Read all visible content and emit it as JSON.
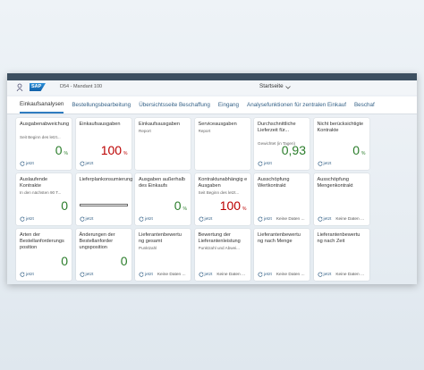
{
  "shell": {
    "system": "D54 - Mandant 100",
    "page_title": "Startseite"
  },
  "tabs": [
    "Einkaufsanalysen",
    "Bestellungsbearbeitung",
    "Übersichtsseite Beschaffung",
    "Eingang",
    "Analysefunktionen für zentralen Einkauf",
    "Beschaf"
  ],
  "tiles": [
    {
      "title": "Ausgabenabweichung",
      "subtitle": "Seit Beginn des letzt...",
      "value": "0",
      "unit": "%",
      "value_color": "#2b7d2b",
      "refresh": "jetzt"
    },
    {
      "title": "Einkaufsausgaben",
      "value": "100",
      "unit": "%",
      "value_color": "#bb0000",
      "refresh": "jetzt"
    },
    {
      "title": "Einkaufsausgaben",
      "subtitle": "Report"
    },
    {
      "title": "Serviceausgaben",
      "subtitle": "Report"
    },
    {
      "title": "Durchschnittliche Lieferzeit für...",
      "subtitle": "Gewichtet (in Tagen)",
      "value": "0,93",
      "value_color": "#2b7d2b",
      "refresh": "jetzt"
    },
    {
      "title": "Nicht berücksichtigte Kontrakte",
      "value": "0",
      "unit": "%",
      "value_color": "#2b7d2b",
      "refresh": "jetzt"
    },
    {
      "title": "Auslaufende Kontrakte",
      "subtitle": "In den nächsten 90 T...",
      "value": "0",
      "value_color": "#2b7d2b",
      "refresh": "jetzt"
    },
    {
      "title": "Lieferplankonsumierung",
      "content": "progress",
      "refresh": "jetzt"
    },
    {
      "title": "Ausgaben außerhalb des Einkaufs",
      "value": "0",
      "unit": "%",
      "value_color": "#2b7d2b",
      "refresh": "jetzt"
    },
    {
      "title": "Kontraktunabhängig e Ausgaben",
      "subtitle": "Seit Beginn des letzt...",
      "value": "100",
      "unit": "%",
      "value_color": "#bb0000",
      "refresh": "jetzt"
    },
    {
      "title": "Ausschöpfung Wertkontrakt",
      "refresh": "jetzt",
      "status": "Keine Daten ..."
    },
    {
      "title": "Ausschöpfung Mengenkontrakt",
      "refresh": "jetzt",
      "status": "Keine Daten ..."
    },
    {
      "title": "Arten der Bestellanforderungs position",
      "value": "0",
      "value_color": "#2b7d2b",
      "refresh": "jetzt"
    },
    {
      "title": "Änderungen der Bestellanforder ungsposition",
      "value": "0",
      "value_color": "#2b7d2b",
      "refresh": "jetzt"
    },
    {
      "title": "Lieferantenbewertu ng gesamt",
      "subtitle": "Punktzahl",
      "refresh": "jetzt",
      "status": "Keine Daten ..."
    },
    {
      "title": "Bewertung der Lieferantenleistung",
      "subtitle": "Punktzahl und Abwei...",
      "refresh": "jetzt",
      "status": "Keine Daten ..."
    },
    {
      "title": "Lieferantenbewertu ng nach Menge",
      "refresh": "jetzt",
      "status": "Keine Daten ..."
    },
    {
      "title": "Lieferantenbewertu ng nach Zeit",
      "refresh": "jetzt",
      "status": "Keine Daten ..."
    }
  ]
}
